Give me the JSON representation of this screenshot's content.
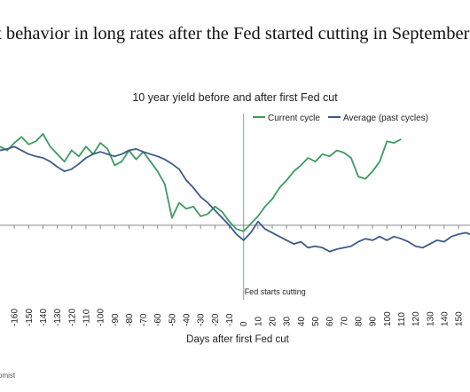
{
  "page": {
    "headline": "t behavior in long rates after the Fed started cutting in September",
    "source": "omist"
  },
  "chart_data": {
    "type": "line",
    "title": "10 year yield before and after first Fed cut",
    "xlabel": "Days after first Fed cut",
    "ylabel": "",
    "xlim": [
      -170,
      158
    ],
    "ylim": [
      -0.9,
      1.35
    ],
    "x_ticks": [
      -160,
      -150,
      -140,
      -130,
      -120,
      -110,
      -100,
      -90,
      -80,
      -70,
      -60,
      -50,
      -40,
      -30,
      -20,
      -10,
      0,
      10,
      20,
      30,
      40,
      50,
      60,
      70,
      80,
      90,
      100,
      110,
      120,
      130,
      140,
      150
    ],
    "annotation": {
      "x": 0,
      "label": "Fed starts cutting"
    },
    "legend_position": "top-right",
    "colors": {
      "current": "#3d9a5e",
      "average": "#3c5a8a",
      "axis": "#888888",
      "vline": "#5fb3a8"
    },
    "series": [
      {
        "name": "Current cycle",
        "points": [
          [
            -170,
            1.05
          ],
          [
            -165,
            1.0
          ],
          [
            -160,
            1.1
          ],
          [
            -155,
            1.18
          ],
          [
            -150,
            1.08
          ],
          [
            -145,
            1.12
          ],
          [
            -140,
            1.22
          ],
          [
            -135,
            1.05
          ],
          [
            -130,
            0.95
          ],
          [
            -125,
            0.85
          ],
          [
            -120,
            1.0
          ],
          [
            -115,
            0.92
          ],
          [
            -110,
            1.05
          ],
          [
            -105,
            0.95
          ],
          [
            -100,
            1.1
          ],
          [
            -95,
            1.02
          ],
          [
            -90,
            0.8
          ],
          [
            -85,
            0.85
          ],
          [
            -80,
            1.0
          ],
          [
            -75,
            0.88
          ],
          [
            -70,
            0.98
          ],
          [
            -65,
            0.85
          ],
          [
            -60,
            0.72
          ],
          [
            -55,
            0.55
          ],
          [
            -50,
            0.1
          ],
          [
            -45,
            0.3
          ],
          [
            -40,
            0.22
          ],
          [
            -35,
            0.25
          ],
          [
            -30,
            0.12
          ],
          [
            -25,
            0.15
          ],
          [
            -20,
            0.25
          ],
          [
            -15,
            0.18
          ],
          [
            -10,
            0.05
          ],
          [
            -5,
            -0.05
          ],
          [
            0,
            -0.08
          ],
          [
            5,
            0.02
          ],
          [
            10,
            0.12
          ],
          [
            15,
            0.25
          ],
          [
            20,
            0.35
          ],
          [
            25,
            0.5
          ],
          [
            30,
            0.6
          ],
          [
            35,
            0.72
          ],
          [
            40,
            0.8
          ],
          [
            45,
            0.9
          ],
          [
            50,
            0.85
          ],
          [
            55,
            0.95
          ],
          [
            60,
            0.92
          ],
          [
            65,
            1.0
          ],
          [
            70,
            0.97
          ],
          [
            75,
            0.9
          ],
          [
            80,
            0.65
          ],
          [
            85,
            0.62
          ],
          [
            90,
            0.72
          ],
          [
            95,
            0.85
          ],
          [
            100,
            1.12
          ],
          [
            105,
            1.1
          ],
          [
            110,
            1.15
          ]
        ]
      },
      {
        "name": "Average (past cycles)",
        "points": [
          [
            -170,
            1.0
          ],
          [
            -165,
            1.02
          ],
          [
            -160,
            1.05
          ],
          [
            -155,
            1.0
          ],
          [
            -150,
            0.95
          ],
          [
            -145,
            0.92
          ],
          [
            -140,
            0.9
          ],
          [
            -135,
            0.85
          ],
          [
            -130,
            0.78
          ],
          [
            -125,
            0.72
          ],
          [
            -120,
            0.75
          ],
          [
            -115,
            0.82
          ],
          [
            -110,
            0.9
          ],
          [
            -105,
            0.95
          ],
          [
            -100,
            0.98
          ],
          [
            -95,
            0.95
          ],
          [
            -90,
            0.92
          ],
          [
            -85,
            0.95
          ],
          [
            -80,
            1.0
          ],
          [
            -75,
            1.02
          ],
          [
            -70,
            0.98
          ],
          [
            -65,
            0.95
          ],
          [
            -60,
            0.92
          ],
          [
            -55,
            0.88
          ],
          [
            -50,
            0.82
          ],
          [
            -45,
            0.75
          ],
          [
            -40,
            0.6
          ],
          [
            -35,
            0.5
          ],
          [
            -30,
            0.38
          ],
          [
            -25,
            0.3
          ],
          [
            -20,
            0.2
          ],
          [
            -15,
            0.1
          ],
          [
            -10,
            0.0
          ],
          [
            -5,
            -0.12
          ],
          [
            0,
            -0.2
          ],
          [
            5,
            -0.1
          ],
          [
            10,
            0.05
          ],
          [
            15,
            -0.05
          ],
          [
            20,
            -0.1
          ],
          [
            25,
            -0.15
          ],
          [
            30,
            -0.2
          ],
          [
            35,
            -0.25
          ],
          [
            40,
            -0.22
          ],
          [
            45,
            -0.3
          ],
          [
            50,
            -0.28
          ],
          [
            55,
            -0.3
          ],
          [
            60,
            -0.35
          ],
          [
            65,
            -0.32
          ],
          [
            70,
            -0.3
          ],
          [
            75,
            -0.28
          ],
          [
            80,
            -0.22
          ],
          [
            85,
            -0.18
          ],
          [
            90,
            -0.2
          ],
          [
            95,
            -0.15
          ],
          [
            100,
            -0.2
          ],
          [
            105,
            -0.15
          ],
          [
            110,
            -0.18
          ],
          [
            115,
            -0.22
          ],
          [
            120,
            -0.28
          ],
          [
            125,
            -0.3
          ],
          [
            130,
            -0.25
          ],
          [
            135,
            -0.2
          ],
          [
            140,
            -0.22
          ],
          [
            145,
            -0.15
          ],
          [
            150,
            -0.12
          ],
          [
            155,
            -0.1
          ],
          [
            158,
            -0.12
          ]
        ]
      }
    ]
  }
}
